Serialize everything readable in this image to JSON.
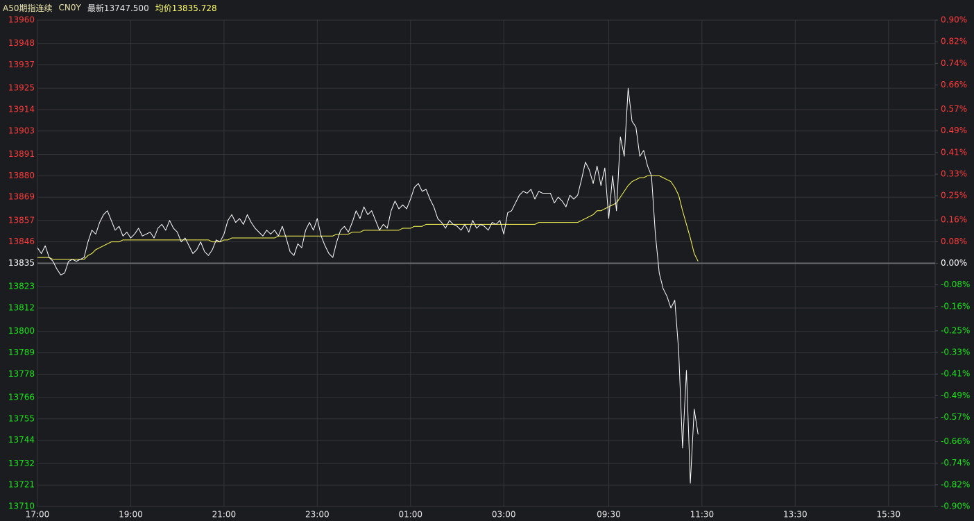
{
  "header": {
    "name": "A50期指连续",
    "code": "CN0Y",
    "last": "最新13747.500",
    "avg": "均价13835.728"
  },
  "chart_data": {
    "type": "line",
    "categories": [
      "17:00",
      null,
      null,
      null,
      null,
      null,
      null,
      null,
      null,
      null,
      null,
      null,
      null,
      null,
      null,
      null,
      null,
      null,
      null,
      null,
      null,
      null,
      null,
      null,
      "19:00",
      null,
      null,
      null,
      null,
      null,
      null,
      null,
      null,
      null,
      null,
      null,
      null,
      null,
      null,
      null,
      null,
      null,
      null,
      null,
      null,
      null,
      null,
      null,
      "21:00",
      null,
      null,
      null,
      null,
      null,
      null,
      null,
      null,
      null,
      null,
      null,
      null,
      null,
      null,
      null,
      null,
      null,
      null,
      null,
      null,
      null,
      null,
      null,
      "23:00",
      null,
      null,
      null,
      null,
      null,
      null,
      null,
      null,
      null,
      null,
      null,
      null,
      null,
      null,
      null,
      null,
      null,
      null,
      null,
      null,
      null,
      null,
      null,
      "01:00",
      null,
      null,
      null,
      null,
      null,
      null,
      null,
      null,
      null,
      null,
      null,
      null,
      null,
      null,
      null,
      null,
      null,
      null,
      null,
      null,
      null,
      null,
      null,
      "03:00",
      null,
      null,
      null,
      null,
      null,
      null,
      null,
      null,
      null,
      null,
      null,
      null,
      null,
      null,
      null,
      null,
      null,
      null,
      null,
      null,
      null,
      null,
      null,
      null,
      null,
      null,
      "09:30",
      null,
      null,
      null,
      null,
      null,
      null,
      null,
      null,
      null,
      null,
      null,
      null,
      null,
      null,
      null,
      null,
      null,
      null,
      null,
      null,
      null,
      null,
      null,
      "11:30",
      null,
      null,
      null,
      null,
      null,
      null,
      null,
      null,
      null,
      null,
      null,
      null,
      null,
      null,
      null,
      null,
      null,
      null,
      null,
      null,
      null,
      null,
      null,
      "13:30",
      null,
      null,
      null,
      null,
      null,
      null,
      null,
      null,
      null,
      null,
      null,
      null,
      null,
      null,
      null,
      null,
      null,
      null,
      null,
      null,
      null,
      null,
      null,
      "15:30",
      null,
      null,
      null,
      null,
      null,
      null,
      null,
      null,
      null,
      null,
      null
    ],
    "series": [
      {
        "color": "#ffffff",
        "values": [
          13843,
          13840,
          13844,
          13838,
          13836,
          13832,
          13829,
          13830,
          13836,
          13837,
          13836,
          13837,
          13838,
          13846,
          13852,
          13850,
          13856,
          13860,
          13862,
          13857,
          13852,
          13854,
          13849,
          13851,
          13848,
          13850,
          13853,
          13849,
          13850,
          13851,
          13848,
          13853,
          13855,
          13852,
          13857,
          13853,
          13851,
          13846,
          13848,
          13844,
          13840,
          13842,
          13846,
          13841,
          13839,
          13842,
          13847,
          13846,
          13850,
          13857,
          13860,
          13856,
          13858,
          13855,
          13860,
          13856,
          13853,
          13851,
          13849,
          13852,
          13850,
          13852,
          13849,
          13854,
          13848,
          13841,
          13839,
          13845,
          13843,
          13852,
          13856,
          13852,
          13858,
          13849,
          13844,
          13840,
          13838,
          13846,
          13852,
          13854,
          13851,
          13856,
          13862,
          13858,
          13864,
          13860,
          13862,
          13857,
          13852,
          13855,
          13853,
          13862,
          13867,
          13863,
          13865,
          13863,
          13868,
          13874,
          13876,
          13872,
          13873,
          13868,
          13864,
          13858,
          13856,
          13853,
          13857,
          13855,
          13854,
          13852,
          13855,
          13851,
          13857,
          13853,
          13855,
          13854,
          13852,
          13856,
          13855,
          13857,
          13850,
          13861,
          13862,
          13866,
          13870,
          13872,
          13871,
          13873,
          13868,
          13872,
          13871,
          13871,
          13871,
          13866,
          13869,
          13867,
          13864,
          13870,
          13868,
          13870,
          13878,
          13887,
          13883,
          13876,
          13885,
          13875,
          13884,
          13858,
          13880,
          13862,
          13900,
          13890,
          13925,
          13908,
          13905,
          13890,
          13893,
          13885,
          13880,
          13850,
          13830,
          13822,
          13818,
          13812,
          13816,
          13790,
          13740,
          13780,
          13722,
          13760,
          13747,
          null,
          null,
          null,
          null,
          null,
          null,
          null,
          null,
          null,
          null,
          null,
          null,
          null,
          null,
          null,
          null,
          null,
          null,
          null,
          null,
          null,
          null,
          null,
          null,
          null,
          null,
          null,
          null,
          null,
          null,
          null,
          null,
          null,
          null,
          null,
          null,
          null,
          null,
          null,
          null,
          null,
          null,
          null,
          null,
          null,
          null,
          null,
          null,
          null,
          null,
          null,
          null,
          null,
          null,
          null,
          null,
          null,
          null,
          null,
          null
        ]
      },
      {
        "color": "#ffff55",
        "values": [
          13838,
          13838,
          13838,
          13838,
          13837,
          13837,
          13837,
          13837,
          13837,
          13837,
          13837,
          13837,
          13837,
          13839,
          13840,
          13842,
          13843,
          13844,
          13845,
          13846,
          13846,
          13846,
          13847,
          13847,
          13847,
          13847,
          13847,
          13847,
          13847,
          13847,
          13847,
          13847,
          13847,
          13847,
          13847,
          13847,
          13847,
          13847,
          13847,
          13847,
          13847,
          13847,
          13847,
          13847,
          13847,
          13846,
          13846,
          13846,
          13847,
          13847,
          13848,
          13848,
          13848,
          13848,
          13848,
          13848,
          13848,
          13848,
          13848,
          13848,
          13848,
          13848,
          13849,
          13849,
          13849,
          13849,
          13849,
          13849,
          13849,
          13849,
          13849,
          13849,
          13849,
          13849,
          13849,
          13849,
          13849,
          13850,
          13850,
          13850,
          13850,
          13851,
          13851,
          13851,
          13852,
          13852,
          13852,
          13852,
          13852,
          13852,
          13852,
          13852,
          13852,
          13852,
          13853,
          13853,
          13853,
          13854,
          13854,
          13854,
          13855,
          13855,
          13855,
          13855,
          13855,
          13855,
          13855,
          13855,
          13855,
          13855,
          13855,
          13855,
          13855,
          13855,
          13855,
          13855,
          13855,
          13855,
          13855,
          13855,
          13855,
          13855,
          13855,
          13855,
          13855,
          13855,
          13855,
          13855,
          13855,
          13856,
          13856,
          13856,
          13856,
          13856,
          13856,
          13856,
          13856,
          13856,
          13856,
          13856,
          13857,
          13858,
          13859,
          13860,
          13862,
          13862,
          13863,
          13864,
          13865,
          13866,
          13869,
          13872,
          13875,
          13877,
          13878,
          13879,
          13879,
          13880,
          13880,
          13880,
          13880,
          13879,
          13878,
          13877,
          13874,
          13870,
          13862,
          13855,
          13848,
          13840,
          13836,
          null,
          null,
          null,
          null,
          null,
          null,
          null,
          null,
          null,
          null,
          null,
          null,
          null,
          null,
          null,
          null,
          null,
          null,
          null,
          null,
          null,
          null,
          null,
          null,
          null,
          null,
          null,
          null,
          null,
          null,
          null,
          null,
          null,
          null,
          null,
          null,
          null,
          null,
          null,
          null,
          null,
          null,
          null,
          null,
          null,
          null,
          null,
          null,
          null,
          null,
          null,
          null,
          null,
          null,
          null,
          null,
          null,
          null,
          null,
          null
        ]
      }
    ],
    "ylim": [
      13710,
      13960
    ],
    "yticks": [
      13960,
      13948,
      13937,
      13925,
      13914,
      13903,
      13891,
      13880,
      13869,
      13857,
      13846,
      13835,
      13823,
      13812,
      13800,
      13789,
      13778,
      13766,
      13755,
      13744,
      13732,
      13721,
      13710
    ],
    "y2lim": [
      -0.9,
      0.9
    ],
    "y2ticks": [
      {
        "value": 0.9,
        "label": "0.90%"
      },
      {
        "value": 0.82,
        "label": "0.82%"
      },
      {
        "value": 0.74,
        "label": "0.74%"
      },
      {
        "value": 0.66,
        "label": "0.66%"
      },
      {
        "value": 0.57,
        "label": "0.57%"
      },
      {
        "value": 0.49,
        "label": "0.49%"
      },
      {
        "value": 0.41,
        "label": "0.41%"
      },
      {
        "value": 0.33,
        "label": "0.33%"
      },
      {
        "value": 0.25,
        "label": "0.25%"
      },
      {
        "value": 0.16,
        "label": "0.16%"
      },
      {
        "value": 0.08,
        "label": "0.08%"
      },
      {
        "value": 0,
        "label": "0.00%"
      },
      {
        "value": -0.08,
        "label": "-0.08%"
      },
      {
        "value": -0.16,
        "label": "-0.16%"
      },
      {
        "value": -0.25,
        "label": "-0.25%"
      },
      {
        "value": -0.33,
        "label": "-0.33%"
      },
      {
        "value": -0.41,
        "label": "-0.41%"
      },
      {
        "value": -0.49,
        "label": "-0.49%"
      },
      {
        "value": -0.57,
        "label": "-0.57%"
      },
      {
        "value": -0.66,
        "label": "-0.66%"
      },
      {
        "value": -0.74,
        "label": "-0.74%"
      },
      {
        "value": -0.82,
        "label": "-0.82%"
      },
      {
        "value": -0.9,
        "label": "-0.90%"
      }
    ],
    "grid": true,
    "up_color": "#ff3b3b",
    "down_color": "#19e619",
    "flat_color": "#ffffff"
  }
}
